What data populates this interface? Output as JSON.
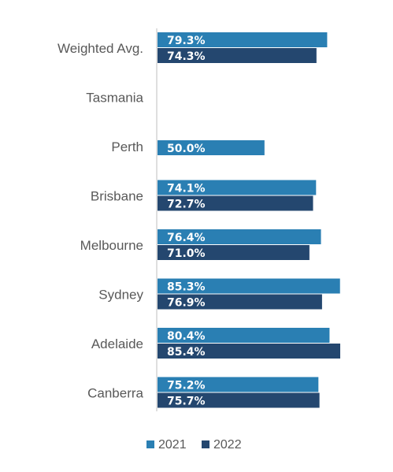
{
  "chart_data": {
    "type": "bar",
    "orientation": "horizontal",
    "categories": [
      "Weighted Avg.",
      "Tasmania",
      "Perth",
      "Brisbane",
      "Melbourne",
      "Sydney",
      "Adelaide",
      "Canberra"
    ],
    "series": [
      {
        "name": "2021",
        "color": "#2a7fb3",
        "values": [
          79.3,
          null,
          50.0,
          74.1,
          76.4,
          85.3,
          80.4,
          75.2
        ],
        "labels": [
          "79.3%",
          "",
          "50.0%",
          "74.1%",
          "76.4%",
          "85.3%",
          "80.4%",
          "75.2%"
        ]
      },
      {
        "name": "2022",
        "color": "#24476f",
        "values": [
          74.3,
          null,
          null,
          72.7,
          71.0,
          76.9,
          85.4,
          75.7
        ],
        "labels": [
          "74.3%",
          "",
          "",
          "72.7%",
          "71.0%",
          "76.9%",
          "85.4%",
          "75.7%"
        ]
      }
    ],
    "value_unit": "%",
    "xlim": [
      0,
      100
    ],
    "grid": false,
    "legend_position": "bottom",
    "title": "",
    "xlabel": "",
    "ylabel": ""
  }
}
